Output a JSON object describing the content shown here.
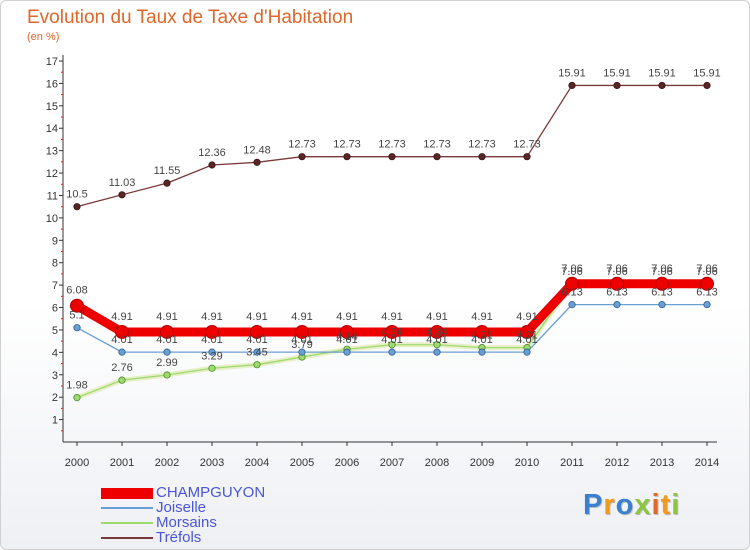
{
  "chart_data": {
    "type": "line",
    "title": "Evolution du Taux de Taxe d'Habitation",
    "subtitle": "(en %)",
    "x": [
      2000,
      2001,
      2002,
      2003,
      2004,
      2005,
      2006,
      2007,
      2008,
      2009,
      2010,
      2011,
      2012,
      2013,
      2014
    ],
    "ylim": [
      0,
      17
    ],
    "yticks": [
      1,
      2,
      3,
      4,
      5,
      6,
      7,
      8,
      9,
      10,
      11,
      12,
      13,
      14,
      15,
      16,
      17
    ],
    "grid": false,
    "legend_position": "bottom-left",
    "series": [
      {
        "name": "CHAMPGUYON",
        "color": "#ee0000",
        "values": [
          6.08,
          4.91,
          4.91,
          4.91,
          4.91,
          4.91,
          4.91,
          4.91,
          4.91,
          4.91,
          4.91,
          7.06,
          7.06,
          7.06,
          7.06
        ],
        "labels": [
          "6.08",
          "4.91",
          "4.91",
          "4.91",
          "4.91",
          "4.91",
          "4.91",
          "4.91",
          "4.91",
          "4.91",
          "4.91",
          "7.06",
          "7.06",
          "7.06",
          "7.06"
        ]
      },
      {
        "name": "Joiselle",
        "color": "#6a9fd4",
        "values": [
          5.1,
          4.01,
          4.01,
          4.01,
          4.01,
          4.01,
          4.01,
          4.01,
          4.01,
          4.01,
          4.01,
          6.13,
          6.13,
          6.13,
          6.13
        ],
        "labels": [
          "5.1",
          "4.01",
          "4.01",
          "4.01",
          "4.01",
          "4.01",
          "4.01",
          "4.01",
          "4.01",
          "4.01",
          "4.01",
          "6.13",
          "6.13",
          "6.13",
          "6.13"
        ]
      },
      {
        "name": "Morsains",
        "color": "#9edb6e",
        "values": [
          1.98,
          2.76,
          2.99,
          3.29,
          3.45,
          3.79,
          4.14,
          4.34,
          4.34,
          4.21,
          4.21,
          7.06,
          7.06,
          7.06,
          7.06
        ],
        "labels": [
          "1.98",
          "2.76",
          "2.99",
          "3.29",
          "3.45",
          "3.79",
          "4.14",
          "4.34",
          "4.34",
          "4.21",
          "4.21",
          "7.06",
          "7.06",
          "7.06",
          "7.06"
        ]
      },
      {
        "name": "Tréfols",
        "color": "#7a3a3a",
        "values": [
          10.5,
          11.03,
          11.55,
          12.36,
          12.48,
          12.73,
          12.73,
          12.73,
          12.73,
          12.73,
          12.73,
          15.91,
          15.91,
          15.91,
          15.91
        ],
        "labels": [
          "10.5",
          "11.03",
          "11.55",
          "12.36",
          "12.48",
          "12.73",
          "12.73",
          "12.73",
          "12.73",
          "12.73",
          "12.73",
          "15.91",
          "15.91",
          "15.91",
          "15.91"
        ]
      }
    ]
  },
  "logo": {
    "letters": [
      "P",
      "r",
      "o",
      "x",
      "i",
      "t",
      "i"
    ],
    "colors": [
      "#3a7fd0",
      "#f29a1c",
      "#3a7fd0",
      "#8cc63f",
      "#e0662a",
      "#f29a1c",
      "#8cc63f"
    ]
  }
}
